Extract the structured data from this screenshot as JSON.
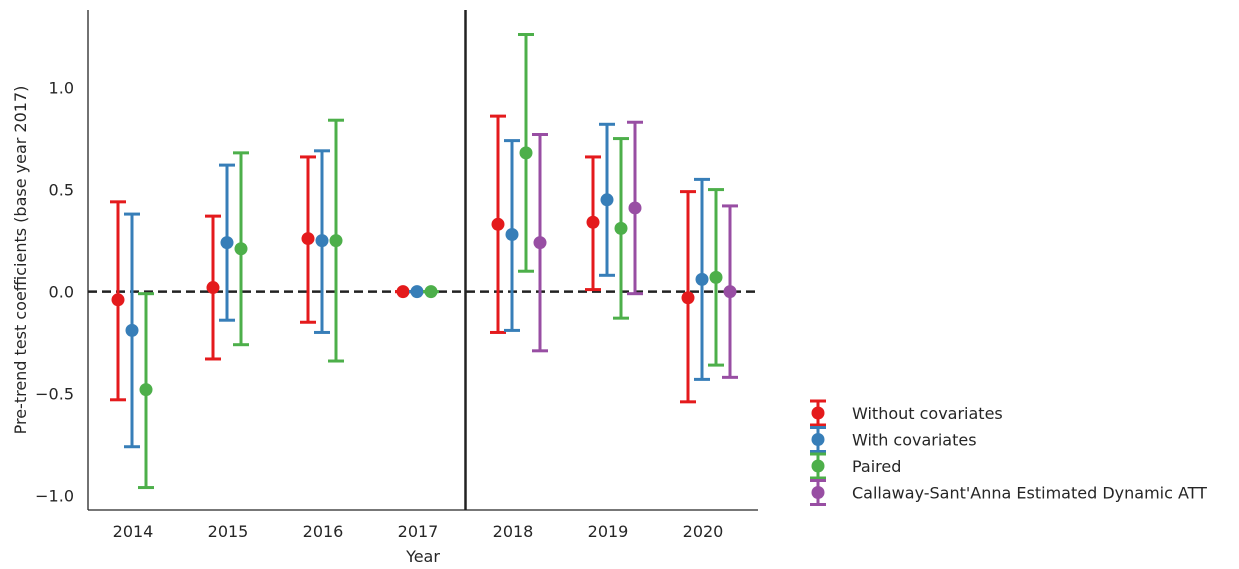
{
  "chart_data": {
    "type": "scatter",
    "title": "",
    "xlabel": "Year",
    "ylabel": "Pre-trend test coefficients (base year 2017)",
    "categories": [
      "2014",
      "2015",
      "2016",
      "2017",
      "2018",
      "2019",
      "2020"
    ],
    "ylim": [
      -1.07,
      1.38
    ],
    "yticks": [
      1.0,
      0.5,
      0.0,
      -0.5,
      -1.0
    ],
    "ytick_labels": [
      "1.0",
      "0.5",
      "0.0",
      "−0.5",
      "−1.0"
    ],
    "reference_line": {
      "y": 0,
      "style": "dashed"
    },
    "divider_between": [
      "2017",
      "2018"
    ],
    "grid": false,
    "legend_position": "outside-lower-right",
    "series": [
      {
        "name": "Without covariates",
        "color": "#e41a1c",
        "points": [
          {
            "x": "2014",
            "y": -0.04,
            "lo": -0.53,
            "hi": 0.44
          },
          {
            "x": "2015",
            "y": 0.02,
            "lo": -0.33,
            "hi": 0.37
          },
          {
            "x": "2016",
            "y": 0.26,
            "lo": -0.15,
            "hi": 0.66
          },
          {
            "x": "2017",
            "y": 0.0,
            "lo": 0.0,
            "hi": 0.0
          },
          {
            "x": "2018",
            "y": 0.33,
            "lo": -0.2,
            "hi": 0.86
          },
          {
            "x": "2019",
            "y": 0.34,
            "lo": 0.01,
            "hi": 0.66
          },
          {
            "x": "2020",
            "y": -0.03,
            "lo": -0.54,
            "hi": 0.49
          }
        ]
      },
      {
        "name": "With covariates",
        "color": "#377eb8",
        "points": [
          {
            "x": "2014",
            "y": -0.19,
            "lo": -0.76,
            "hi": 0.38
          },
          {
            "x": "2015",
            "y": 0.24,
            "lo": -0.14,
            "hi": 0.62
          },
          {
            "x": "2016",
            "y": 0.25,
            "lo": -0.2,
            "hi": 0.69
          },
          {
            "x": "2017",
            "y": 0.0,
            "lo": 0.0,
            "hi": 0.0
          },
          {
            "x": "2018",
            "y": 0.28,
            "lo": -0.19,
            "hi": 0.74
          },
          {
            "x": "2019",
            "y": 0.45,
            "lo": 0.08,
            "hi": 0.82
          },
          {
            "x": "2020",
            "y": 0.06,
            "lo": -0.43,
            "hi": 0.55
          }
        ]
      },
      {
        "name": "Paired",
        "color": "#4daf4a",
        "points": [
          {
            "x": "2014",
            "y": -0.48,
            "lo": -0.96,
            "hi": -0.01
          },
          {
            "x": "2015",
            "y": 0.21,
            "lo": -0.26,
            "hi": 0.68
          },
          {
            "x": "2016",
            "y": 0.25,
            "lo": -0.34,
            "hi": 0.84
          },
          {
            "x": "2017",
            "y": 0.0,
            "lo": 0.0,
            "hi": 0.0
          },
          {
            "x": "2018",
            "y": 0.68,
            "lo": 0.1,
            "hi": 1.26
          },
          {
            "x": "2019",
            "y": 0.31,
            "lo": -0.13,
            "hi": 0.75
          },
          {
            "x": "2020",
            "y": 0.07,
            "lo": -0.36,
            "hi": 0.5
          }
        ]
      },
      {
        "name": "Callaway-Sant'Anna Estimated Dynamic ATT",
        "color": "#984ea3",
        "points": [
          {
            "x": "2018",
            "y": 0.24,
            "lo": -0.29,
            "hi": 0.77
          },
          {
            "x": "2019",
            "y": 0.41,
            "lo": -0.01,
            "hi": 0.83
          },
          {
            "x": "2020",
            "y": 0.0,
            "lo": -0.42,
            "hi": 0.42
          }
        ]
      }
    ]
  }
}
